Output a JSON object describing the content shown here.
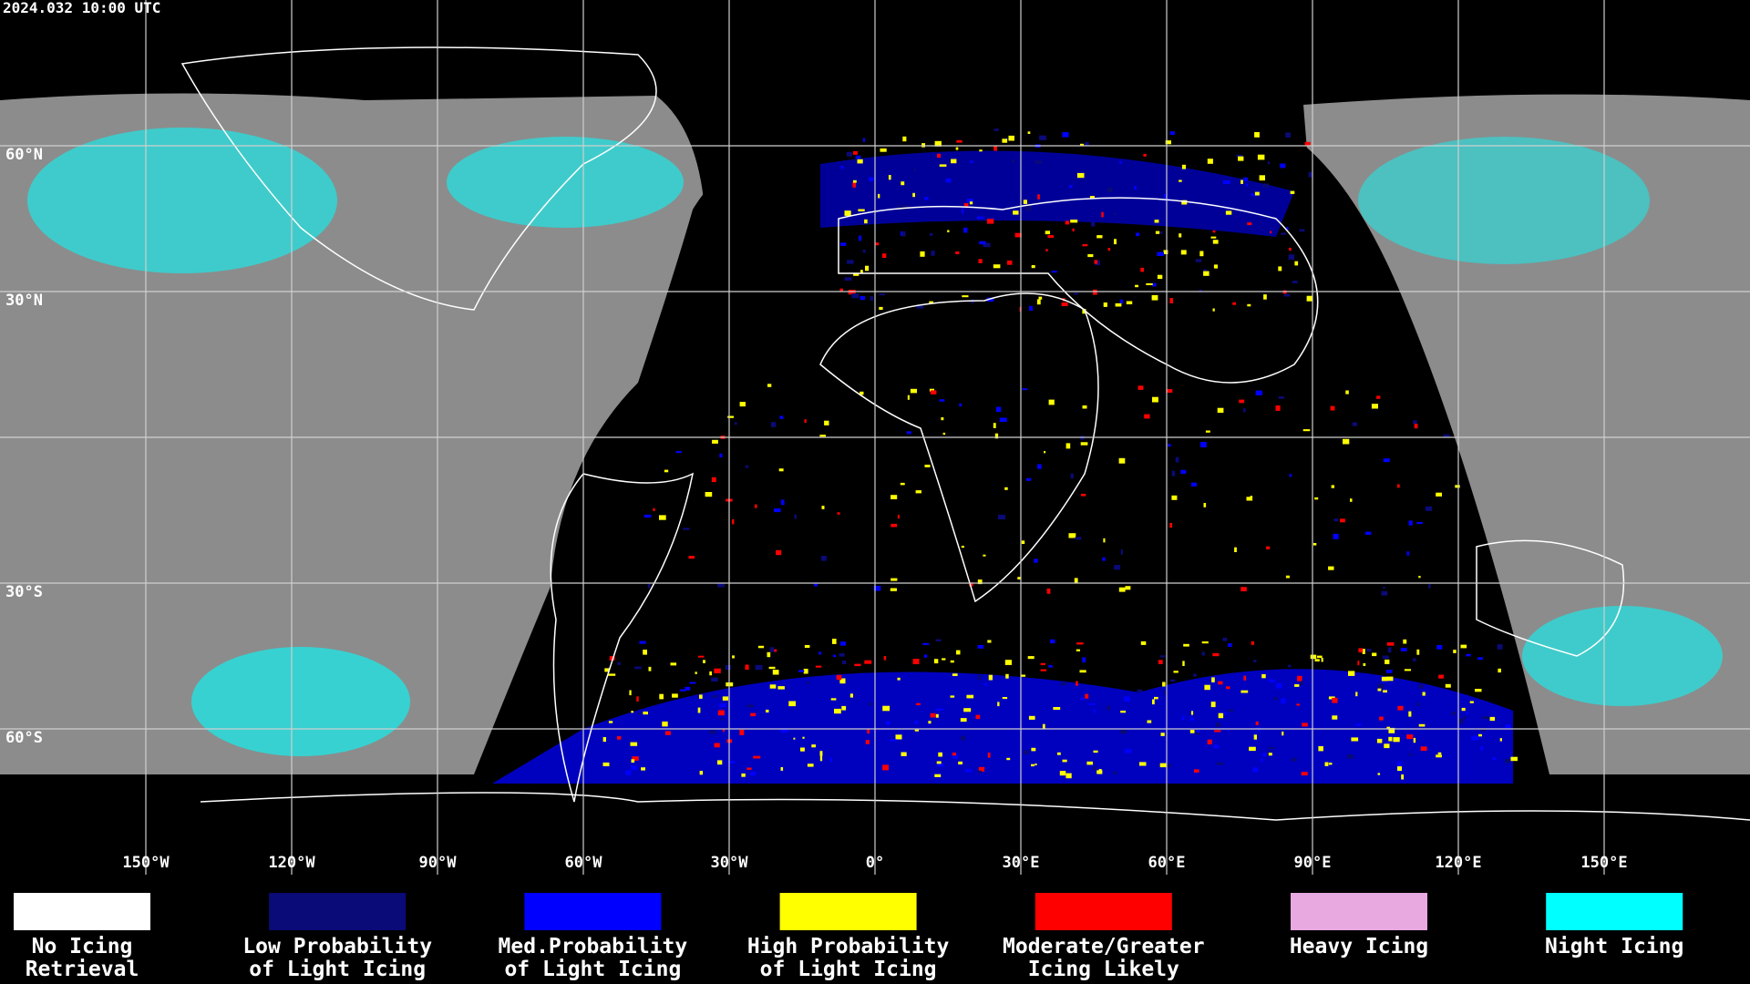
{
  "header": {
    "title": "2024.032 10:00 UTC"
  },
  "map": {
    "longitude_labels": [
      "150°W",
      "120°W",
      "90°W",
      "60°W",
      "30°W",
      "0°",
      "30°E",
      "60°E",
      "90°E",
      "120°E",
      "150°E"
    ],
    "latitude_labels": [
      "60°N",
      "30°N",
      "30°S",
      "60°S"
    ]
  },
  "legend": {
    "items": [
      {
        "color": "#ffffff",
        "lines": [
          "No Icing",
          "Retrieval"
        ]
      },
      {
        "color": "#0a0a78",
        "lines": [
          "Low Probability",
          "of Light Icing"
        ]
      },
      {
        "color": "#0000ff",
        "lines": [
          "Med.Probability",
          "of Light Icing"
        ]
      },
      {
        "color": "#ffff00",
        "lines": [
          "High Probability",
          "of Light Icing"
        ]
      },
      {
        "color": "#ff0000",
        "lines": [
          "Moderate/Greater",
          "Icing Likely"
        ]
      },
      {
        "color": "#e8a8e0",
        "lines": [
          "Heavy Icing"
        ]
      },
      {
        "color": "#00ffff",
        "lines": [
          "Night Icing"
        ]
      }
    ]
  }
}
